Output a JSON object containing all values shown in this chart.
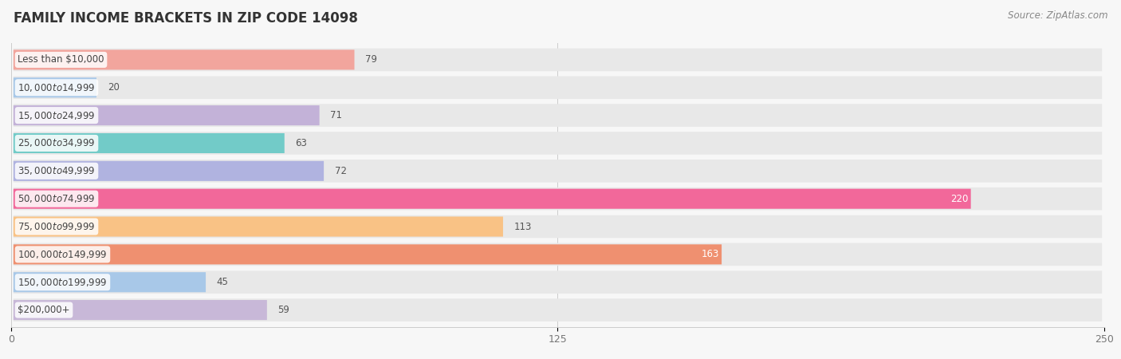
{
  "title": "FAMILY INCOME BRACKETS IN ZIP CODE 14098",
  "source": "Source: ZipAtlas.com",
  "categories": [
    "Less than $10,000",
    "$10,000 to $14,999",
    "$15,000 to $24,999",
    "$25,000 to $34,999",
    "$35,000 to $49,999",
    "$50,000 to $74,999",
    "$75,000 to $99,999",
    "$100,000 to $149,999",
    "$150,000 to $199,999",
    "$200,000+"
  ],
  "values": [
    79,
    20,
    71,
    63,
    72,
    220,
    113,
    163,
    45,
    59
  ],
  "bar_colors": [
    "#f2a59d",
    "#a8c8e8",
    "#c3b2d8",
    "#72cbc8",
    "#b0b3e0",
    "#f2689a",
    "#f9c285",
    "#ef9070",
    "#a8c8e8",
    "#c8b8d8"
  ],
  "value_inside_bar": [
    5,
    6,
    7
  ],
  "xlim": [
    0,
    250
  ],
  "xticks": [
    0,
    125,
    250
  ],
  "background_color": "#f7f7f7",
  "row_bg_color": "#ebebeb",
  "title_fontsize": 12,
  "source_fontsize": 8.5,
  "label_fontsize": 8.5,
  "value_fontsize": 8.5
}
